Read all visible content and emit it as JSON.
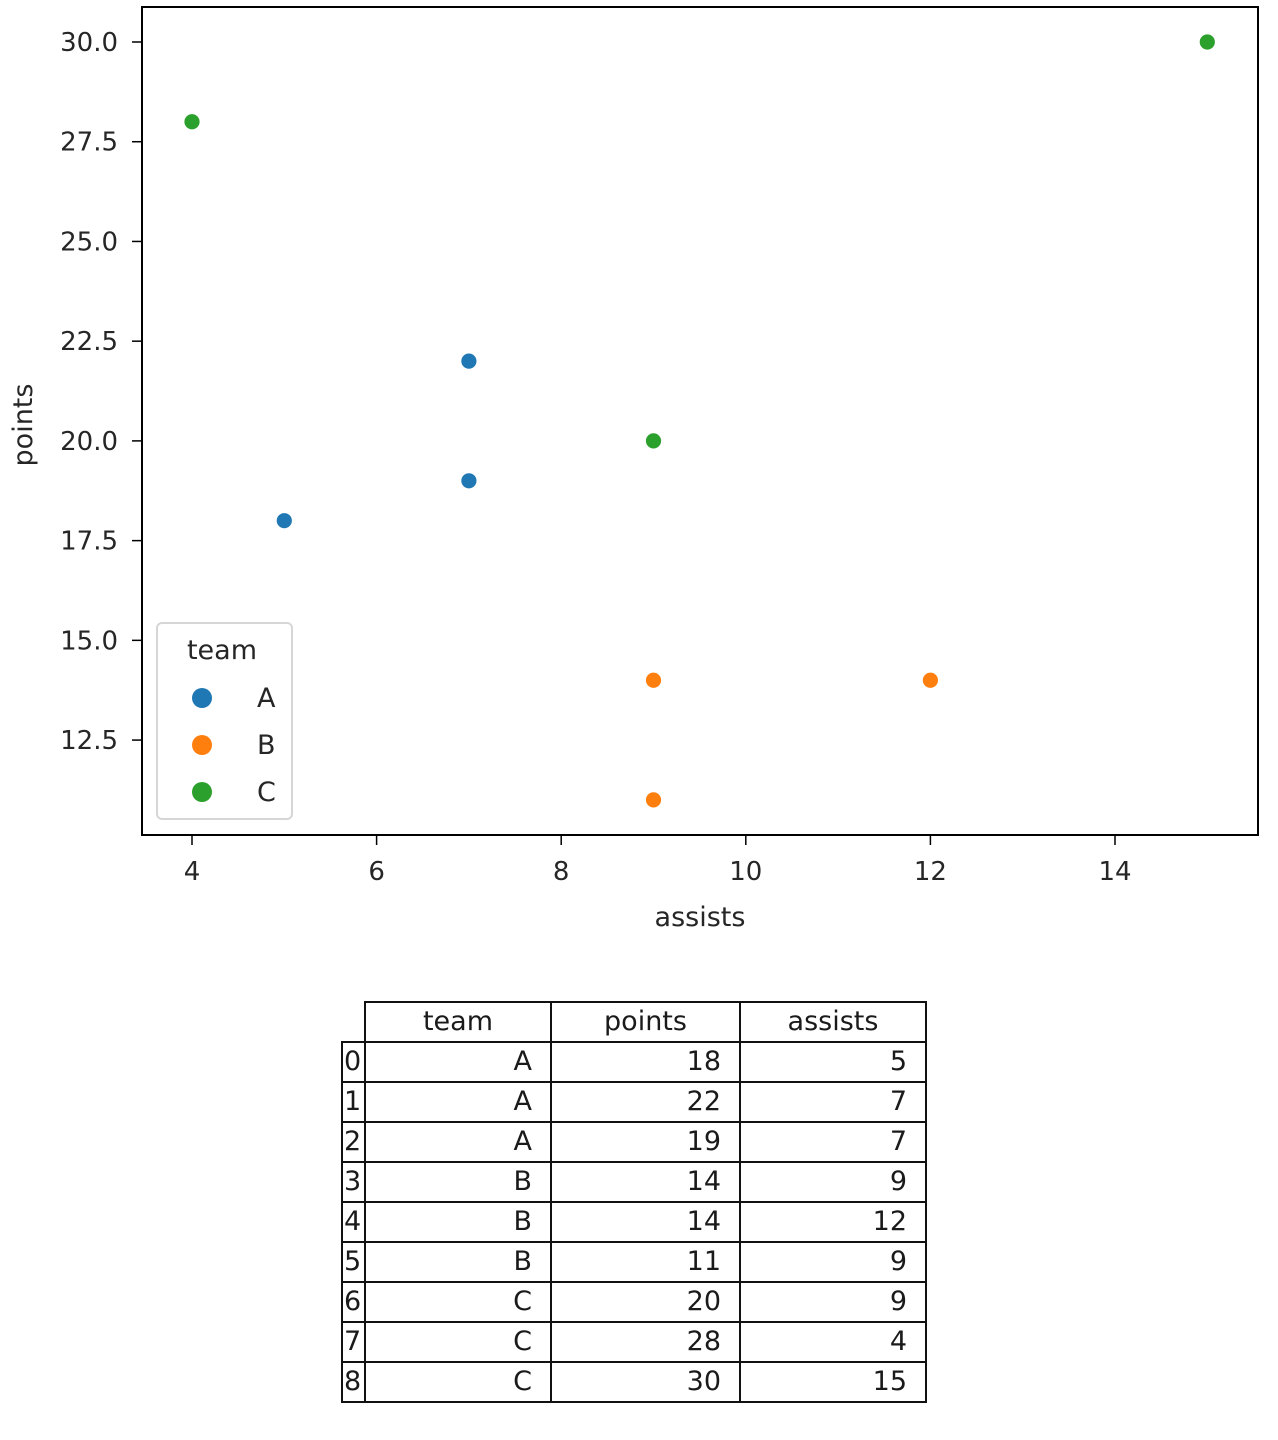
{
  "chart_data": {
    "type": "scatter",
    "title": "",
    "xlabel": "assists",
    "ylabel": "points",
    "xlim": [
      3.45,
      15.55
    ],
    "ylim": [
      10.05,
      30.95
    ],
    "xticks": [
      4,
      6,
      8,
      10,
      12,
      14
    ],
    "yticks": [
      "12.5",
      "15.0",
      "17.5",
      "20.0",
      "22.5",
      "25.0",
      "27.5",
      "30.0"
    ],
    "grid": false,
    "legend": {
      "title": "team",
      "position": "lower left",
      "entries": [
        "A",
        "B",
        "C"
      ]
    },
    "series": [
      {
        "name": "A",
        "color": "#1f77b4",
        "points": [
          {
            "x": 5,
            "y": 18
          },
          {
            "x": 7,
            "y": 22
          },
          {
            "x": 7,
            "y": 19
          }
        ]
      },
      {
        "name": "B",
        "color": "#ff7f0e",
        "points": [
          {
            "x": 9,
            "y": 14
          },
          {
            "x": 12,
            "y": 14
          },
          {
            "x": 9,
            "y": 11
          }
        ]
      },
      {
        "name": "C",
        "color": "#2ca02c",
        "points": [
          {
            "x": 9,
            "y": 20
          },
          {
            "x": 4,
            "y": 28
          },
          {
            "x": 15,
            "y": 30
          }
        ]
      }
    ]
  },
  "table": {
    "columns": [
      "team",
      "points",
      "assists"
    ],
    "rows": [
      {
        "index": "0",
        "team": "A",
        "points": "18",
        "assists": "5"
      },
      {
        "index": "1",
        "team": "A",
        "points": "22",
        "assists": "7"
      },
      {
        "index": "2",
        "team": "A",
        "points": "19",
        "assists": "7"
      },
      {
        "index": "3",
        "team": "B",
        "points": "14",
        "assists": "9"
      },
      {
        "index": "4",
        "team": "B",
        "points": "14",
        "assists": "12"
      },
      {
        "index": "5",
        "team": "B",
        "points": "11",
        "assists": "9"
      },
      {
        "index": "6",
        "team": "C",
        "points": "20",
        "assists": "9"
      },
      {
        "index": "7",
        "team": "C",
        "points": "28",
        "assists": "4"
      },
      {
        "index": "8",
        "team": "C",
        "points": "30",
        "assists": "15"
      }
    ]
  }
}
